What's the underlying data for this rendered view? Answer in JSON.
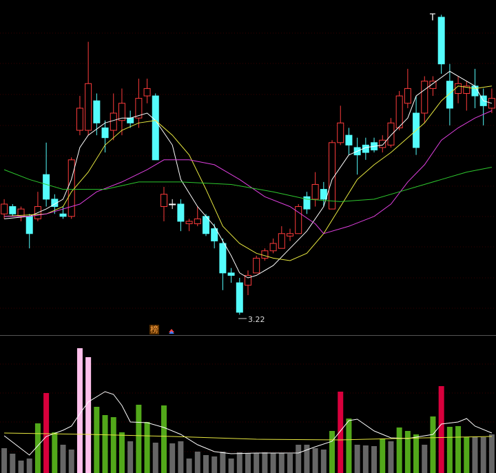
{
  "chart_data": [
    {
      "type": "candlestick",
      "xlim": [
        -0.5,
        58.5
      ],
      "ylim": [
        3.14,
        4.5
      ],
      "up_color": "#ff3c3c",
      "down_color": "#54fcfc",
      "flat_color": "#ffffff",
      "open": [
        3.63,
        3.66,
        3.62,
        3.62,
        3.61,
        3.79,
        3.69,
        3.63,
        3.62,
        3.97,
        3.97,
        4.09,
        3.98,
        3.97,
        4.01,
        4.02,
        4.02,
        4.11,
        4.11,
        3.66,
        3.67,
        3.67,
        3.59,
        3.59,
        3.62,
        3.57,
        3.51,
        3.39,
        3.35,
        3.34,
        3.39,
        3.45,
        3.48,
        3.49,
        3.54,
        3.55,
        3.7,
        3.69,
        3.73,
        3.65,
        3.92,
        3.95,
        3.9,
        3.91,
        3.92,
        3.9,
        3.91,
        3.98,
        4.08,
        4.04,
        4.04,
        4.14,
        4.43,
        4.17,
        4.12,
        4.12,
        4.15,
        4.11,
        4.06
      ],
      "high": [
        3.69,
        3.67,
        3.66,
        3.63,
        3.72,
        3.92,
        3.71,
        3.66,
        3.86,
        4.11,
        4.33,
        4.12,
        4.01,
        4.12,
        4.14,
        4.05,
        4.18,
        4.18,
        4.12,
        3.74,
        3.69,
        3.69,
        3.61,
        3.66,
        3.63,
        3.59,
        3.53,
        3.41,
        3.37,
        3.4,
        3.46,
        3.49,
        3.53,
        3.58,
        3.57,
        3.67,
        3.72,
        3.8,
        3.76,
        3.93,
        4.07,
        3.98,
        3.94,
        3.94,
        3.94,
        3.95,
        4.02,
        4.13,
        4.22,
        4.11,
        4.19,
        4.19,
        4.44,
        4.24,
        4.19,
        4.17,
        4.22,
        4.14,
        4.14
      ],
      "low": [
        3.61,
        3.62,
        3.6,
        3.49,
        3.6,
        3.66,
        3.63,
        3.61,
        3.61,
        3.95,
        3.95,
        3.95,
        3.88,
        3.93,
        3.95,
        3.98,
        3.98,
        4.08,
        3.85,
        3.6,
        3.65,
        3.56,
        3.56,
        3.58,
        3.54,
        3.49,
        3.32,
        3.35,
        3.22,
        3.3,
        3.39,
        3.44,
        3.47,
        3.49,
        3.52,
        3.55,
        3.63,
        3.66,
        3.66,
        3.65,
        3.91,
        3.87,
        3.79,
        3.85,
        3.88,
        3.88,
        3.9,
        3.97,
        4.06,
        3.87,
        4.0,
        4.11,
        4.2,
        3.99,
        4.08,
        4.05,
        4.06,
        3.99,
        4.04
      ],
      "close": [
        3.67,
        3.63,
        3.65,
        3.55,
        3.66,
        3.69,
        3.66,
        3.62,
        3.85,
        4.06,
        4.16,
        4.0,
        3.94,
        4.04,
        4.08,
        4.0,
        4.1,
        4.14,
        3.85,
        3.71,
        3.67,
        3.6,
        3.6,
        3.61,
        3.55,
        3.52,
        3.39,
        3.38,
        3.23,
        3.38,
        3.45,
        3.48,
        3.51,
        3.55,
        3.55,
        3.66,
        3.65,
        3.75,
        3.69,
        3.92,
        4.0,
        3.91,
        3.87,
        3.88,
        3.89,
        3.93,
        4.0,
        4.11,
        4.14,
        3.9,
        4.17,
        4.17,
        4.24,
        4.06,
        4.16,
        4.15,
        4.11,
        4.07,
        4.1
      ],
      "series": [
        {
          "color": "#ffffff",
          "x": [
            0,
            3,
            5,
            7,
            8,
            9,
            10,
            12,
            14,
            15,
            17,
            18,
            20,
            21,
            23,
            25,
            27,
            28,
            29,
            30,
            32,
            34,
            36,
            38,
            39,
            41,
            43,
            45,
            46,
            48,
            49,
            51,
            53,
            54,
            56,
            57,
            58
          ],
          "values": [
            3.61,
            3.62,
            3.65,
            3.69,
            3.77,
            3.9,
            3.95,
            4.0,
            4.02,
            4.02,
            4.04,
            4.01,
            3.91,
            3.77,
            3.66,
            3.58,
            3.46,
            3.39,
            3.37,
            3.38,
            3.42,
            3.49,
            3.56,
            3.66,
            3.77,
            3.87,
            3.9,
            3.91,
            3.95,
            4.02,
            4.11,
            4.16,
            4.21,
            4.19,
            4.15,
            4.09,
            4.08
          ]
        },
        {
          "color": "#e8e840",
          "x": [
            0,
            5,
            7,
            8,
            10,
            12,
            14,
            16,
            18,
            20,
            22,
            24,
            26,
            28,
            30,
            32,
            34,
            36,
            38,
            40,
            42,
            44,
            46,
            48,
            50,
            52,
            54,
            56,
            58
          ],
          "values": [
            3.62,
            3.63,
            3.66,
            3.72,
            3.8,
            3.91,
            3.97,
            4.0,
            4.01,
            3.95,
            3.87,
            3.73,
            3.58,
            3.51,
            3.47,
            3.45,
            3.44,
            3.47,
            3.55,
            3.66,
            3.77,
            3.83,
            3.88,
            3.94,
            4.0,
            4.09,
            4.15,
            4.14,
            4.15
          ]
        },
        {
          "color": "#e040e0",
          "x": [
            0,
            3,
            5,
            7,
            9,
            11,
            14,
            17,
            19,
            22,
            25,
            28,
            31,
            34,
            37,
            38,
            41,
            44,
            46,
            48,
            50,
            52,
            54,
            56,
            58
          ],
          "values": [
            3.62,
            3.62,
            3.63,
            3.65,
            3.67,
            3.72,
            3.76,
            3.81,
            3.85,
            3.85,
            3.83,
            3.77,
            3.7,
            3.66,
            3.59,
            3.55,
            3.58,
            3.62,
            3.67,
            3.76,
            3.83,
            3.93,
            3.98,
            4.02,
            4.05
          ]
        },
        {
          "color": "#2ec82e",
          "x": [
            0,
            3,
            7,
            12,
            16,
            21,
            27,
            32,
            36,
            40,
            44,
            47,
            49,
            52,
            55,
            58
          ],
          "values": [
            3.81,
            3.77,
            3.73,
            3.73,
            3.76,
            3.76,
            3.75,
            3.72,
            3.69,
            3.68,
            3.69,
            3.72,
            3.74,
            3.77,
            3.8,
            3.82
          ]
        }
      ],
      "top_marker": "T",
      "low_label": "3.22",
      "badge": "榜"
    },
    {
      "type": "bar",
      "xlim": [
        -0.5,
        58.5
      ],
      "ylim": [
        0,
        198
      ],
      "values": [
        36,
        28,
        18,
        21,
        72,
        116,
        59,
        41,
        34,
        181,
        168,
        96,
        84,
        81,
        59,
        46,
        99,
        74,
        44,
        98,
        43,
        46,
        21,
        31,
        26,
        24,
        31,
        21,
        30,
        29,
        29,
        30,
        29,
        29,
        28,
        41,
        41,
        36,
        34,
        61,
        118,
        79,
        41,
        40,
        39,
        50,
        46,
        66,
        61,
        56,
        41,
        82,
        126,
        67,
        68,
        52,
        53,
        52,
        56
      ],
      "colors": [
        "#666666",
        "#666666",
        "#666666",
        "#666666",
        "#52a81a",
        "#d8003c",
        "#52a81a",
        "#666666",
        "#666666",
        "#ffc0ec",
        "#ffc0ec",
        "#52a81a",
        "#52a81a",
        "#52a81a",
        "#52a81a",
        "#666666",
        "#52a81a",
        "#52a81a",
        "#666666",
        "#52a81a",
        "#666666",
        "#666666",
        "#666666",
        "#666666",
        "#666666",
        "#666666",
        "#666666",
        "#666666",
        "#666666",
        "#666666",
        "#666666",
        "#666666",
        "#666666",
        "#666666",
        "#666666",
        "#666666",
        "#666666",
        "#666666",
        "#666666",
        "#52a81a",
        "#d8003c",
        "#52a81a",
        "#666666",
        "#666666",
        "#666666",
        "#52a81a",
        "#666666",
        "#52a81a",
        "#52a81a",
        "#52a81a",
        "#666666",
        "#52a81a",
        "#d8003c",
        "#52a81a",
        "#52a81a",
        "#52a81a",
        "#666666",
        "#666666",
        "#666666"
      ],
      "series": [
        {
          "color": "#ffffff",
          "x": [
            0,
            3,
            5,
            7,
            8,
            9,
            10,
            12,
            13,
            14,
            15,
            17,
            19,
            21,
            23,
            25,
            27,
            30,
            35,
            37,
            39,
            40,
            41,
            42,
            44,
            46,
            48,
            50,
            51,
            52,
            54,
            55,
            56,
            58
          ],
          "values": [
            54,
            26,
            53,
            62,
            68,
            86,
            103,
            118,
            114,
            98,
            74,
            73,
            66,
            56,
            41,
            31,
            28,
            29,
            29,
            38,
            46,
            61,
            76,
            78,
            61,
            51,
            50,
            54,
            56,
            71,
            74,
            79,
            68,
            58
          ]
        },
        {
          "color": "#e8e840",
          "x": [
            0,
            10,
            20,
            30,
            40,
            50,
            58
          ],
          "values": [
            58,
            56,
            53,
            49,
            48,
            51,
            53
          ]
        }
      ]
    }
  ]
}
